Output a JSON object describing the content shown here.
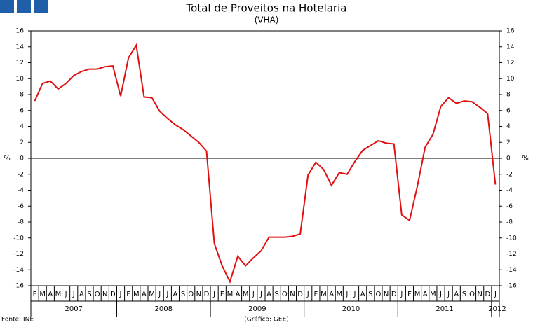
{
  "chart_data": {
    "type": "line",
    "title": "Total de Proveitos na Hotelaria",
    "subtitle": "(VHA)",
    "y_label": "%",
    "source": "Fonte: INE",
    "credit": "(Gráfico: GEE)",
    "categories": [
      "F",
      "M",
      "A",
      "M",
      "J",
      "J",
      "A",
      "S",
      "O",
      "N",
      "D",
      "J",
      "F",
      "M",
      "A",
      "M",
      "J",
      "J",
      "A",
      "S",
      "O",
      "N",
      "D",
      "J",
      "F",
      "M",
      "A",
      "M",
      "J",
      "J",
      "A",
      "S",
      "O",
      "N",
      "D",
      "J",
      "F",
      "M",
      "A",
      "M",
      "J",
      "J",
      "A",
      "S",
      "O",
      "N",
      "D",
      "J",
      "F",
      "M",
      "A",
      "M",
      "J",
      "J",
      "A",
      "S",
      "O",
      "N",
      "D",
      "J"
    ],
    "years": [
      "2007",
      "2008",
      "2009",
      "2010",
      "2011",
      "2012"
    ],
    "series": [
      {
        "name": "VHA",
        "color": "#e01010",
        "values": [
          7.2,
          9.4,
          9.7,
          8.7,
          9.4,
          10.4,
          10.9,
          11.2,
          11.2,
          11.5,
          11.6,
          7.8,
          12.6,
          14.2,
          7.7,
          7.6,
          5.9,
          5.0,
          4.2,
          3.6,
          2.8,
          2.0,
          0.9,
          -10.7,
          -13.5,
          -15.5,
          -12.3,
          -13.5,
          -12.5,
          -11.6,
          -9.9,
          -9.9,
          -9.9,
          -9.8,
          -9.5,
          -2.1,
          -0.5,
          -1.4,
          -3.4,
          -1.8,
          -2.0,
          -0.4,
          1.0,
          1.6,
          2.2,
          1.9,
          1.8,
          -7.1,
          -7.8,
          -3.5,
          1.4,
          3.0,
          6.5,
          7.6,
          6.9,
          7.2,
          7.1,
          6.4,
          5.6,
          -3.3
        ]
      }
    ],
    "ylim": [
      -16,
      16
    ],
    "yticks": [
      -16,
      -14,
      -12,
      -10,
      -8,
      -6,
      -4,
      -2,
      0,
      2,
      4,
      6,
      8,
      10,
      12,
      14,
      16
    ]
  }
}
